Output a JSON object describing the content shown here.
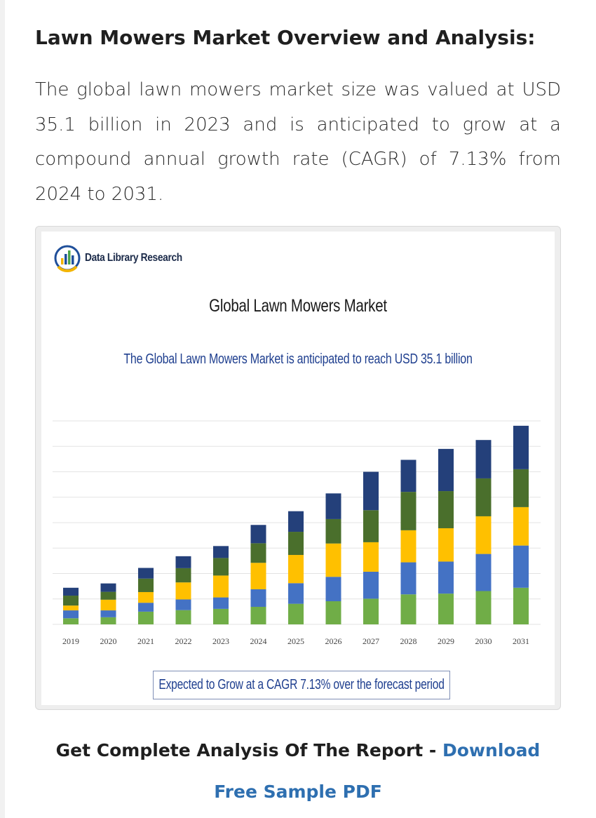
{
  "article": {
    "heading": "Lawn Mowers Market Overview and Analysis:",
    "intro": "The global lawn mowers market size was valued at USD 35.1 billion in 2023 and is anticipated to grow at a compound annual growth rate (CAGR) of 7.13% from 2024 to 2031."
  },
  "infographic": {
    "brand": "Data Library Research",
    "cagr_note": "Expected to Grow at a CAGR 7.13% over the forecast period"
  },
  "cta": {
    "prefix": "Get Complete Analysis Of The Report - ",
    "link_part1": "Download",
    "link_part2": "Free Sample PDF"
  },
  "chart_data": {
    "type": "bar",
    "stacked": true,
    "title": "Global Lawn Mowers Market",
    "subtitle": "The Global Lawn Mowers Market is anticipated to reach USD 35.1 billion",
    "xlabel": "",
    "ylabel": "",
    "ylim": [
      0,
      8
    ],
    "grid": true,
    "categories": [
      "2019",
      "2020",
      "2021",
      "2022",
      "2023",
      "2024",
      "2025",
      "2026",
      "2027",
      "2028",
      "2029",
      "2030",
      "2031"
    ],
    "series": [
      {
        "color": "#70ad47",
        "values": [
          0.24,
          0.28,
          0.5,
          0.56,
          0.61,
          0.69,
          0.81,
          0.91,
          1.01,
          1.18,
          1.21,
          1.31,
          1.44
        ]
      },
      {
        "color": "#4472c4",
        "values": [
          0.31,
          0.27,
          0.35,
          0.42,
          0.45,
          0.69,
          0.81,
          0.96,
          1.06,
          1.26,
          1.26,
          1.46,
          1.66
        ]
      },
      {
        "color": "#ffc000",
        "values": [
          0.19,
          0.42,
          0.42,
          0.67,
          0.86,
          1.04,
          1.11,
          1.31,
          1.16,
          1.26,
          1.31,
          1.48,
          1.51
        ]
      },
      {
        "color": "#4a6f2c",
        "values": [
          0.39,
          0.31,
          0.53,
          0.56,
          0.69,
          0.77,
          0.91,
          0.96,
          1.26,
          1.51,
          1.46,
          1.49,
          1.49
        ]
      },
      {
        "color": "#24407a",
        "values": [
          0.31,
          0.33,
          0.42,
          0.47,
          0.47,
          0.72,
          0.81,
          1.01,
          1.51,
          1.26,
          1.66,
          1.51,
          1.71
        ]
      }
    ]
  },
  "colors": {
    "link": "#2e6fb0",
    "chart_text_blue": "#1f3f8f"
  }
}
